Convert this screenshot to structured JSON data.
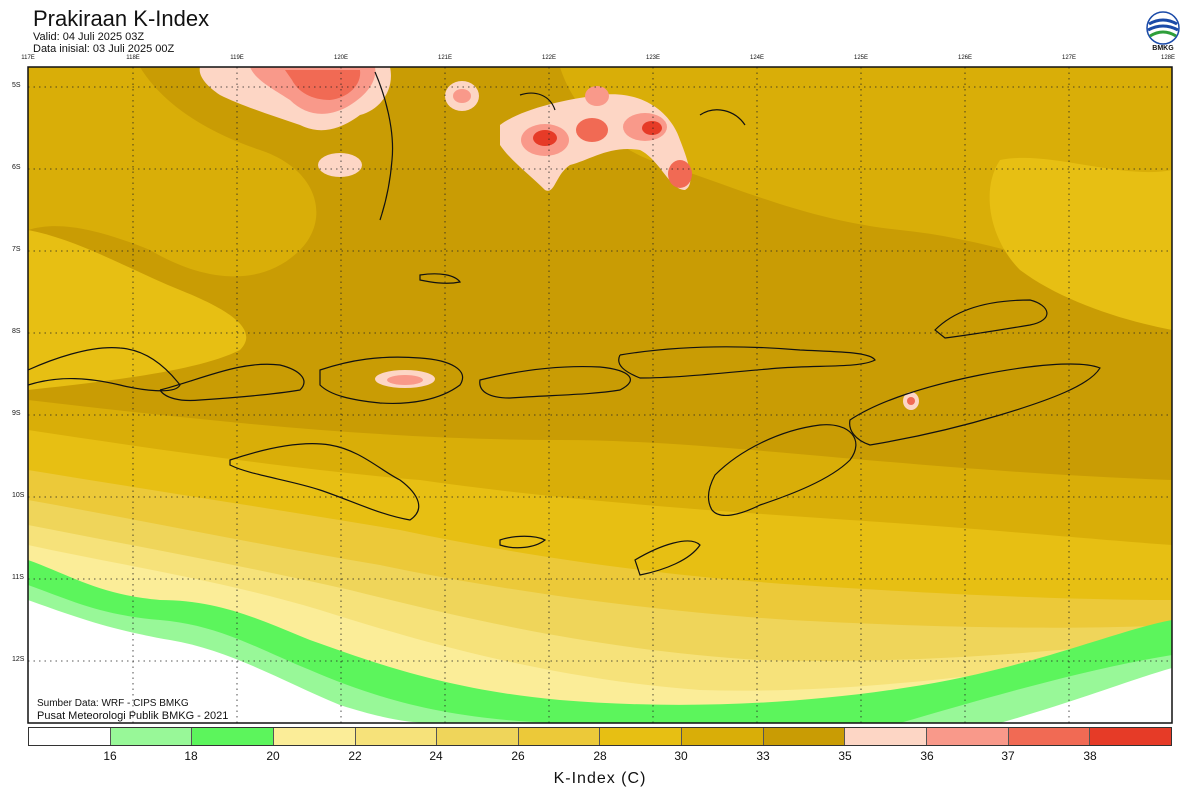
{
  "header": {
    "title": "Prakiraan K-Index",
    "valid": "Valid: 04 Juli 2025 03Z",
    "init": "Data inisial: 03 Juli 2025 00Z"
  },
  "logo": {
    "text": "BMKG",
    "icon": "bmkg-logo-icon"
  },
  "axes": {
    "lon_labels": [
      "117E",
      "118E",
      "119E",
      "120E",
      "121E",
      "122E",
      "123E",
      "124E",
      "125E",
      "126E",
      "127E",
      "128E"
    ],
    "lat_labels": [
      "5S",
      "6S",
      "7S",
      "8S",
      "9S",
      "10S",
      "11S",
      "12S"
    ]
  },
  "credits": {
    "source": "Sumber Data: WRF - CIPS BMKG",
    "org": "Pusat Meteorologi Publik BMKG - 2021"
  },
  "legend": {
    "title": "K-Index (C)",
    "ticks": [
      "16",
      "18",
      "20",
      "22",
      "24",
      "26",
      "28",
      "30",
      "33",
      "35",
      "36",
      "37",
      "38"
    ],
    "colors": [
      "#ffffff",
      "#98f898",
      "#5cf55c",
      "#fbed98",
      "#f6e27a",
      "#efd55a",
      "#ecc939",
      "#e7bf13",
      "#d9ae08",
      "#c99c04",
      "#fdd6c5",
      "#f9998a",
      "#f16a54",
      "#e63b27"
    ]
  }
}
